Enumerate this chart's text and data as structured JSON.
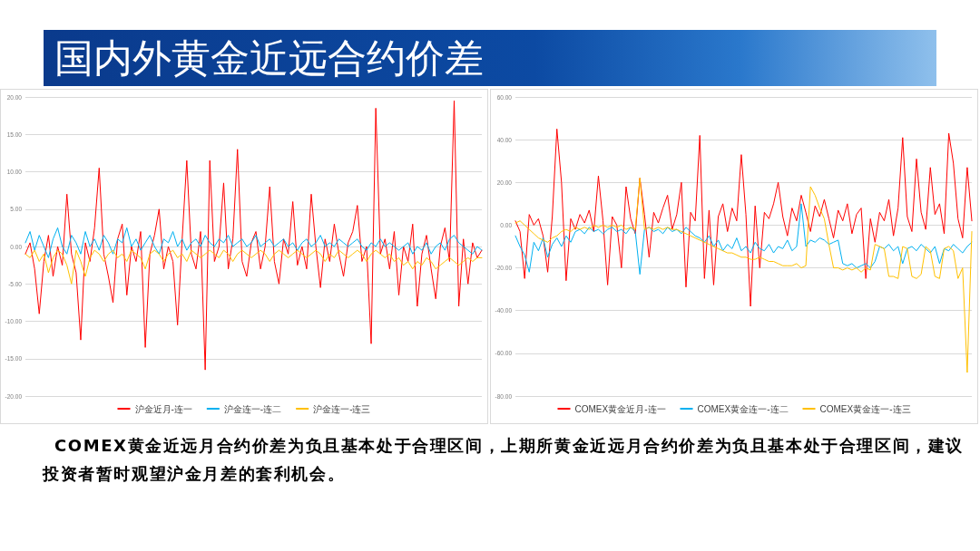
{
  "chart_data": [
    {
      "type": "line",
      "title": "国内外黄金近远合约价差",
      "annotations": [
        "COMEX黄金近远月合约价差为负且基本处于合理区间，上期所黄金近远月合约价差为负且基本处于合理区间，建议投资者暂时观望沪金月差的套利机会。"
      ],
      "categories": [
        null,
        null,
        null,
        null,
        null,
        null,
        null,
        null,
        null,
        null,
        null,
        null,
        null,
        null,
        null,
        null,
        null,
        null,
        null,
        null,
        null,
        null,
        null,
        null,
        null,
        null,
        null,
        null,
        null,
        null,
        null,
        null,
        null,
        null,
        null,
        null,
        null,
        null,
        null,
        null,
        null,
        null,
        null,
        null,
        null,
        null,
        null,
        null,
        null,
        null,
        null,
        null,
        null,
        null,
        null,
        null,
        null,
        null,
        null,
        null,
        null,
        null,
        null,
        null,
        null,
        null,
        null,
        null,
        null,
        null,
        null,
        null,
        null,
        null,
        null,
        null,
        null,
        null,
        null,
        null,
        null,
        null,
        null,
        null,
        null,
        null,
        null,
        null,
        null,
        null,
        null,
        null,
        null,
        null,
        null,
        null,
        null,
        null,
        null,
        null
      ],
      "series": [
        {
          "name": "沪金近月-连一",
          "color": "#ff0000",
          "values": [
            -1,
            0.5,
            -3,
            -9,
            -2,
            1.5,
            -4,
            0,
            -2.5,
            7,
            -1,
            -3.5,
            -12.5,
            0.5,
            -2,
            2.5,
            10.5,
            -1,
            -4,
            -7.5,
            1,
            3,
            -6.5,
            0,
            -2,
            2,
            -13.5,
            -1,
            1.5,
            5,
            -3,
            0,
            -2,
            -10.5,
            1,
            11.5,
            -1,
            -3,
            2,
            -16.5,
            11.5,
            -2,
            0,
            8.5,
            -3,
            1,
            13,
            -2,
            -4,
            0.5,
            2,
            -3,
            0,
            8,
            -2,
            -5,
            1,
            -1,
            6,
            -2.5,
            0,
            -3,
            7,
            0,
            -5.5,
            1,
            -2,
            3,
            -1,
            -4,
            0.5,
            2,
            5.5,
            -2,
            0,
            -13,
            18.5,
            -1,
            1,
            -3,
            2,
            -6.5,
            0,
            -2,
            3,
            -8,
            -1,
            1.5,
            -3,
            -7,
            0,
            2.5,
            -2,
            19.5,
            -8,
            1,
            -5,
            0.5,
            -1.5,
            -0.5
          ]
        },
        {
          "name": "沪金连一-连二",
          "color": "#00b0f0",
          "values": [
            0.5,
            2,
            -0.5,
            1.5,
            0,
            -1.5,
            1,
            2.5,
            0,
            -1,
            1.5,
            0.5,
            -1,
            2,
            0,
            1,
            -0.5,
            1.5,
            0.5,
            -1,
            1,
            0.5,
            2.5,
            0,
            1,
            -0.5,
            0.5,
            1.5,
            0,
            -1,
            1,
            0.5,
            2,
            0,
            1,
            -0.5,
            0.5,
            1,
            0,
            1.5,
            0.5,
            0,
            1,
            0.5,
            1.5,
            0,
            0.5,
            1,
            0,
            0.5,
            1.5,
            0,
            0.5,
            1,
            0,
            0.5,
            1,
            0,
            0.5,
            -0.5,
            0.5,
            1,
            0,
            0.5,
            1.5,
            0,
            0.5,
            0,
            1,
            0.5,
            0,
            0.5,
            1,
            0,
            -0.5,
            0.5,
            0,
            1,
            0,
            0.5,
            0,
            -0.5,
            0,
            0.5,
            -1,
            0,
            -0.5,
            0.5,
            -1,
            0,
            0.5,
            -0.5,
            1,
            1.5,
            0.5,
            0,
            -0.5,
            -1,
            0,
            -0.5
          ]
        },
        {
          "name": "沪金连一-连三",
          "color": "#ffc000",
          "values": [
            -1,
            -1.5,
            -0.5,
            -2,
            -1,
            -3.5,
            -1.5,
            -0.5,
            -1,
            -2.5,
            -5,
            -0.5,
            -2,
            -4,
            -1.5,
            -0.5,
            -1,
            -2,
            -1,
            -0.5,
            -1.5,
            -1,
            -2,
            -0.5,
            -1,
            -1.5,
            -3,
            -1,
            -0.5,
            -1,
            -2,
            -1,
            -0.5,
            -1.5,
            -1,
            -2,
            -0.5,
            -1,
            -1.5,
            -1,
            -0.5,
            -1,
            -1.5,
            -0.5,
            -1,
            -2,
            -1,
            -0.5,
            -1,
            -1.5,
            -1,
            -0.5,
            -1,
            -2,
            -1,
            -0.5,
            -1,
            -1.5,
            -1,
            -0.5,
            -1,
            -1.5,
            -1,
            -0.5,
            -1,
            -2,
            -1,
            -1.5,
            -0.5,
            -1,
            -1.5,
            -1,
            -0.5,
            -1,
            -2,
            -1,
            -0.5,
            -1,
            -1.5,
            -1,
            -2,
            -1.5,
            -2.5,
            -2,
            -3,
            -2,
            -2.5,
            -1.5,
            -2,
            -3,
            -2.5,
            -2,
            -1.5,
            -2,
            -2.5,
            -2,
            -1.5,
            -2,
            -1.5,
            -1.5
          ]
        }
      ],
      "ylim": [
        -20,
        20
      ],
      "yticks": [
        {
          "value": 20,
          "label": "20.00"
        },
        {
          "value": 15,
          "label": "15.00"
        },
        {
          "value": 10,
          "label": "10.00"
        },
        {
          "value": 5,
          "label": "5.00"
        },
        {
          "value": 0,
          "label": "0.00"
        },
        {
          "value": -5,
          "label": "-5.00"
        },
        {
          "value": -10,
          "label": "-10.00"
        },
        {
          "value": -15,
          "label": "-15.00"
        },
        {
          "value": -20,
          "label": "-20.00"
        }
      ],
      "grid": "y",
      "legend": "bottom",
      "tick_labels": "y",
      "line_style": "solid"
    },
    {
      "type": "line",
      "categories": [
        null,
        null,
        null,
        null,
        null,
        null,
        null,
        null,
        null,
        null,
        null,
        null,
        null,
        null,
        null,
        null,
        null,
        null,
        null,
        null,
        null,
        null,
        null,
        null,
        null,
        null,
        null,
        null,
        null,
        null,
        null,
        null,
        null,
        null,
        null,
        null,
        null,
        null,
        null,
        null,
        null,
        null,
        null,
        null,
        null,
        null,
        null,
        null,
        null,
        null,
        null,
        null,
        null,
        null,
        null,
        null,
        null,
        null,
        null,
        null,
        null,
        null,
        null,
        null,
        null,
        null,
        null,
        null,
        null,
        null,
        null,
        null,
        null,
        null,
        null,
        null,
        null,
        null,
        null,
        null,
        null,
        null,
        null,
        null,
        null,
        null,
        null,
        null,
        null,
        null,
        null,
        null,
        null,
        null,
        null,
        null,
        null,
        null,
        null,
        null
      ],
      "series": [
        {
          "name": "COMEX黄金近月-连一",
          "color": "#ff0000",
          "values": [
            2,
            -3,
            -25,
            5,
            0,
            3,
            -5,
            -22,
            4,
            45,
            20,
            -26,
            3,
            -2,
            5,
            1,
            7,
            -3,
            23,
            2,
            -28,
            4,
            0,
            -20,
            18,
            3,
            -4,
            22,
            5,
            -15,
            6,
            1,
            8,
            14,
            -2,
            5,
            20,
            -29,
            6,
            2,
            42,
            -25,
            7,
            -28,
            4,
            10,
            -3,
            8,
            2,
            33,
            5,
            -38,
            9,
            -20,
            6,
            3,
            10,
            20,
            4,
            -5,
            8,
            2,
            14,
            6,
            -3,
            9,
            4,
            12,
            3,
            -6,
            7,
            2,
            10,
            -4,
            5,
            8,
            -25,
            3,
            -8,
            6,
            2,
            12,
            -5,
            8,
            41,
            4,
            -3,
            31,
            6,
            -2,
            27,
            5,
            10,
            -4,
            43,
            29,
            3,
            -6,
            27,
            2
          ]
        },
        {
          "name": "COMEX黄金连一-连二",
          "color": "#00b0f0",
          "values": [
            -5,
            -10,
            -14,
            -22,
            -8,
            -12,
            -6,
            -15,
            -9,
            -6,
            -10,
            -5,
            -8,
            -3,
            -2,
            -4,
            -1,
            -3,
            -2,
            -4,
            -2,
            -1,
            -3,
            -2,
            -4,
            -1,
            -3,
            -23,
            -2,
            -1,
            -3,
            -2,
            -4,
            -1,
            -3,
            -2,
            -4,
            -1,
            -3,
            -5,
            -6,
            -8,
            -5,
            -10,
            -7,
            -12,
            -9,
            -11,
            -6,
            -12,
            -10,
            -13,
            -8,
            -11,
            -12,
            -9,
            -13,
            -10,
            -11,
            -7,
            -12,
            -10,
            10,
            -10,
            -7,
            -8,
            -6,
            -7,
            -9,
            -8,
            -7,
            -18,
            -19,
            -18,
            -20,
            -19,
            -18,
            -20,
            -17,
            -10,
            -11,
            -9,
            -12,
            -10,
            -18,
            -11,
            -10,
            -12,
            -9,
            -11,
            -13,
            -10,
            -18,
            -11,
            -12,
            -9,
            -11,
            -13,
            -10,
            -8
          ]
        },
        {
          "name": "COMEX黄金连一-连三",
          "color": "#ffc000",
          "values": [
            1,
            2,
            0,
            -2,
            -4,
            -6,
            -7,
            -8,
            -6,
            -5,
            -3,
            -2,
            -3,
            -1,
            -2,
            -1,
            -2,
            0,
            -1,
            0,
            -1,
            0,
            -1,
            0,
            -2,
            -1,
            -2,
            22,
            -2,
            -1,
            -2,
            -1,
            -2,
            -1,
            -2,
            -2,
            -3,
            -4,
            -5,
            -6,
            -7,
            -8,
            -9,
            -10,
            -11,
            -12,
            -13,
            -13,
            -14,
            -15,
            -15,
            -16,
            -16,
            -15,
            -16,
            -17,
            -17,
            -18,
            -19,
            -19,
            -19,
            -18,
            -20,
            -19,
            18,
            14,
            8,
            3,
            -9,
            -20,
            -20,
            -21,
            -20,
            -21,
            -20,
            -22,
            -20,
            -21,
            -9,
            -10,
            -11,
            -24,
            -24,
            -25,
            -10,
            -11,
            -24,
            -25,
            -23,
            -10,
            -12,
            -24,
            -25,
            -11,
            -10,
            -12,
            -25,
            -20,
            -69,
            -3
          ]
        }
      ],
      "ylim": [
        -80,
        60
      ],
      "yticks": [
        {
          "value": 60,
          "label": "60.00"
        },
        {
          "value": 40,
          "label": "40.00"
        },
        {
          "value": 20,
          "label": "20.00"
        },
        {
          "value": 0,
          "label": "0.00"
        },
        {
          "value": -20,
          "label": "-20.00"
        },
        {
          "value": -40,
          "label": "-40.00"
        },
        {
          "value": -60,
          "label": "-60.00"
        },
        {
          "value": -80,
          "label": "-80.00"
        }
      ],
      "grid": "y",
      "legend": "bottom",
      "tick_labels": "y",
      "line_style": "solid"
    }
  ]
}
